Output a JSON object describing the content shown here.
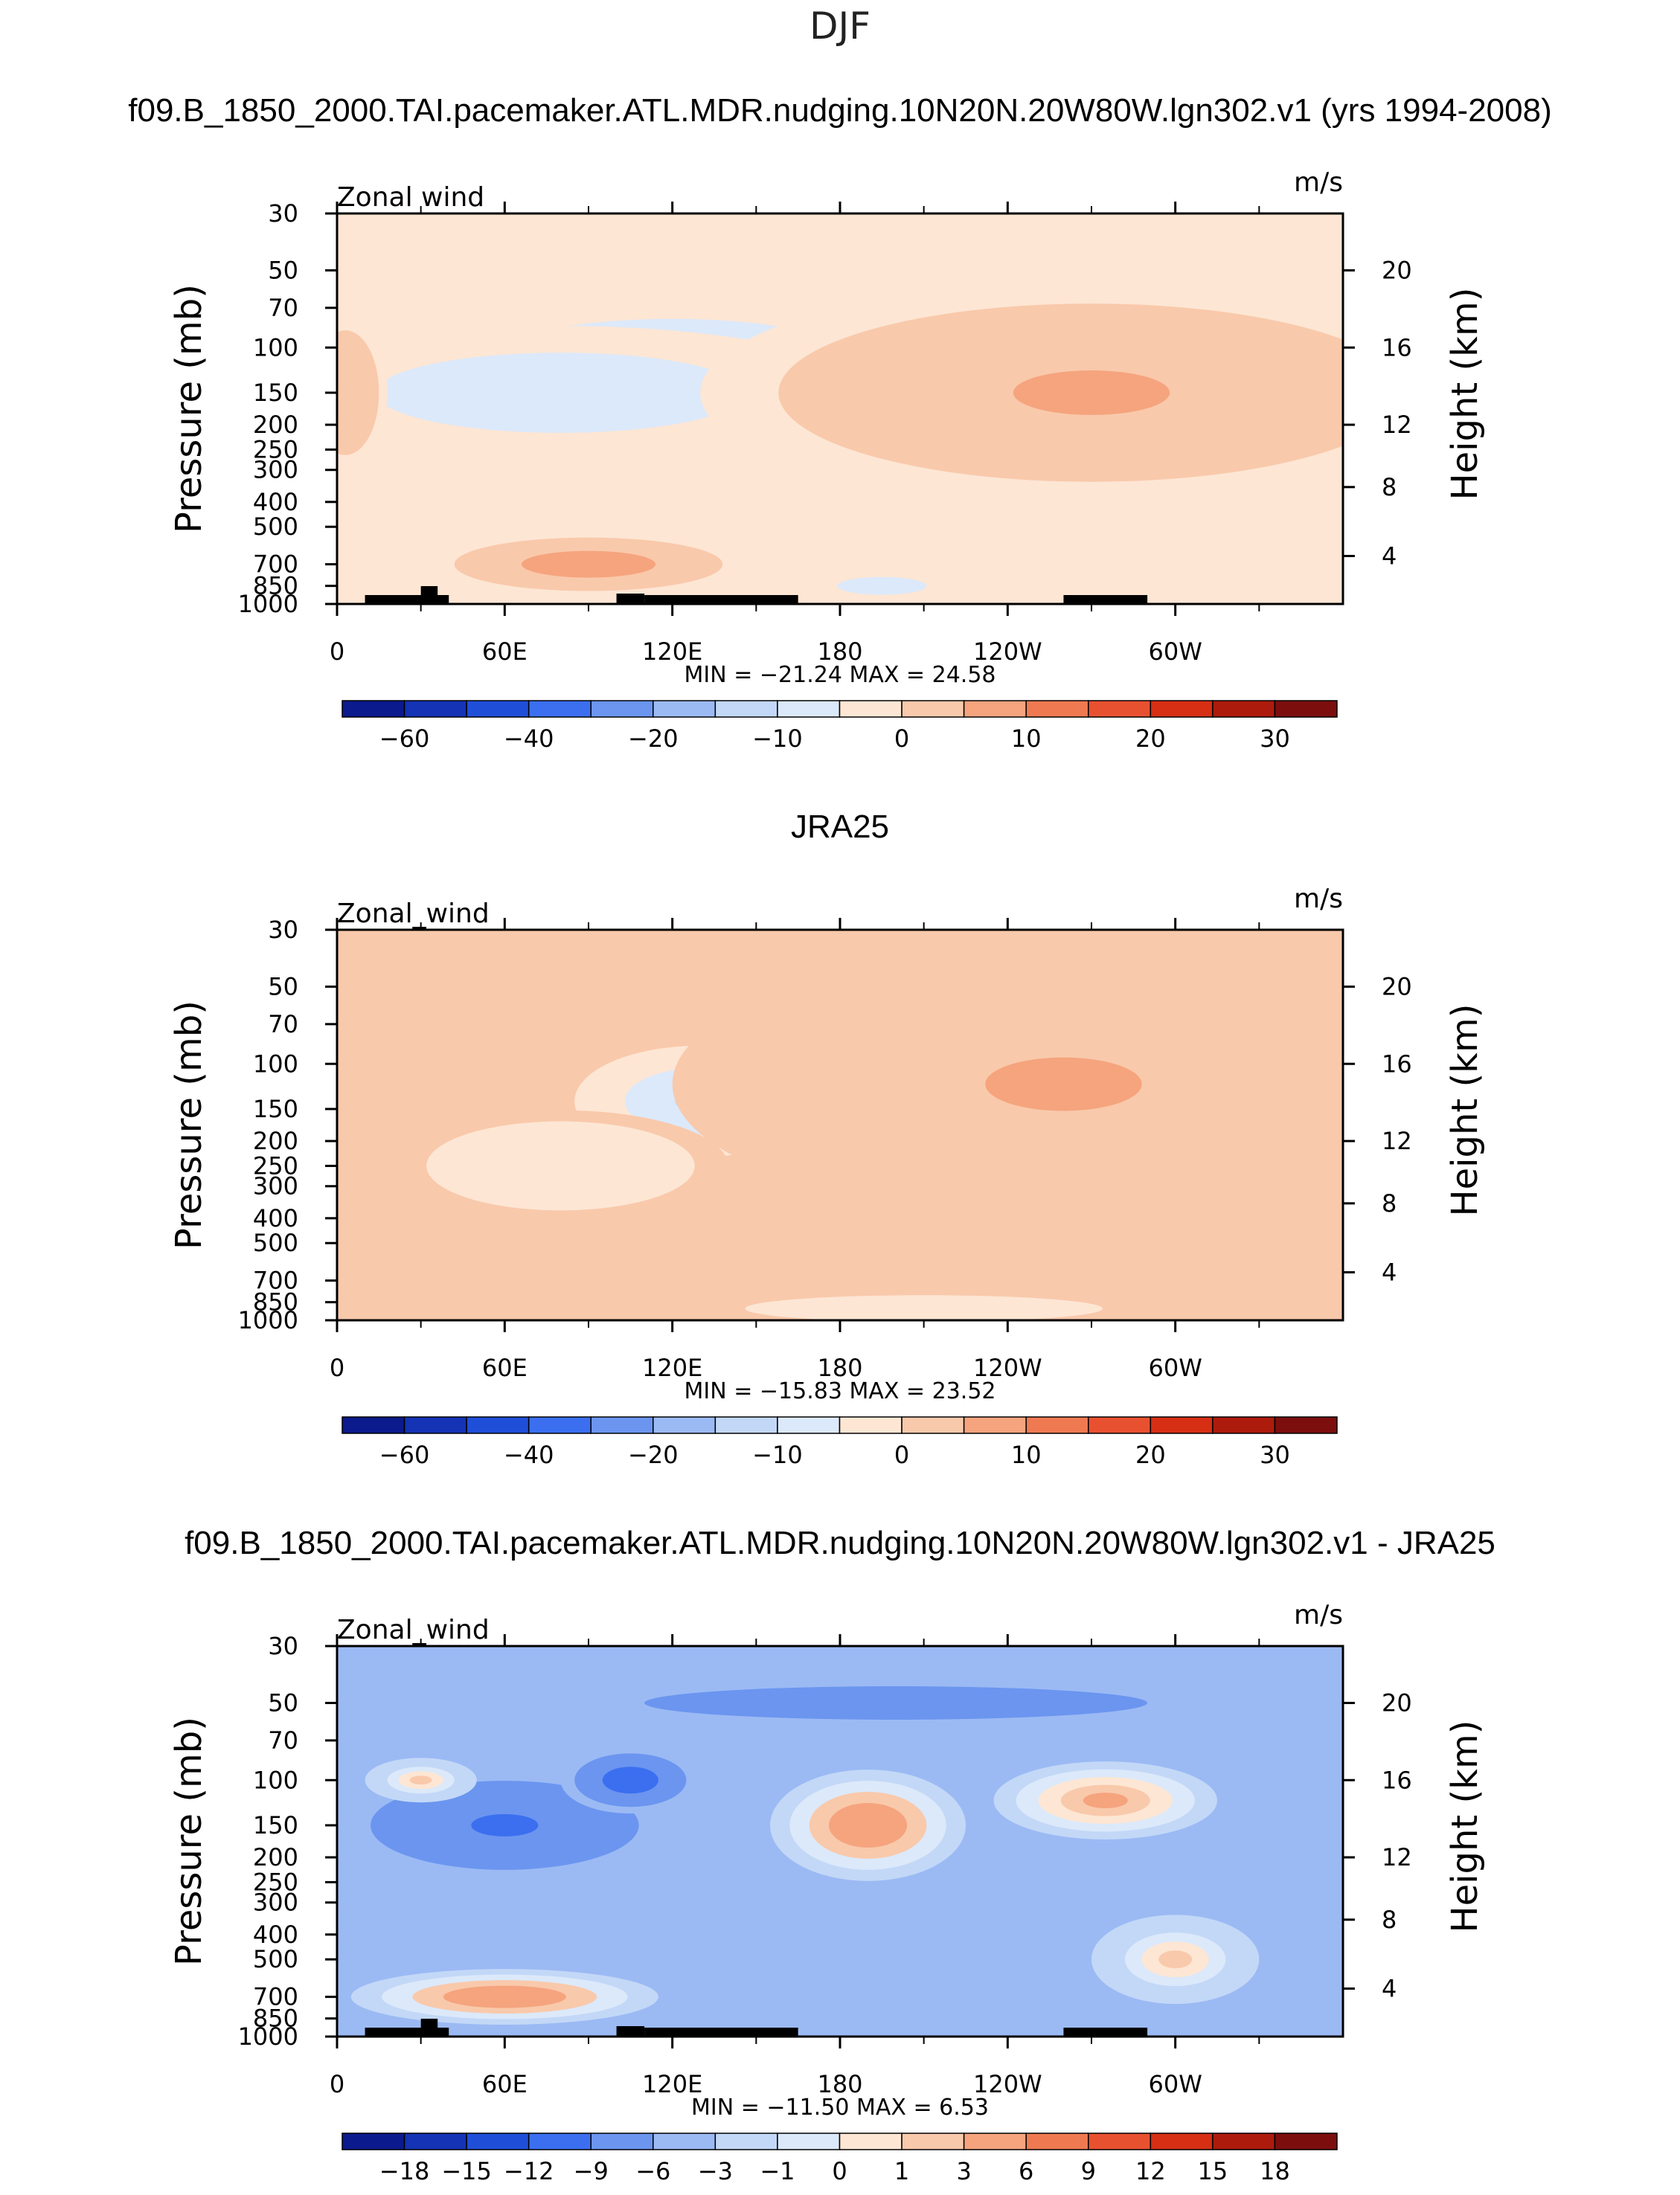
{
  "figure_title": "DJF",
  "chart_data": [
    {
      "type": "contour",
      "title": "f09.B_1850_2000.TAI.pacemaker.ATL.MDR.nudging.10N20N.20W80W.lgn302.v1 (yrs 1994-2008)",
      "variable": "Zonal wind",
      "units": "m/s",
      "ylabel": "Pressure (mb)",
      "y2label": "Height (km)",
      "pressure_ticks": [
        "30",
        "50",
        "70",
        "100",
        "150",
        "200",
        "250",
        "300",
        "400",
        "500",
        "700",
        "850",
        "1000"
      ],
      "height_ticks": [
        "20",
        "16",
        "12",
        "8",
        "4"
      ],
      "lon_ticks": [
        "0",
        "60E",
        "120E",
        "180",
        "120W",
        "60W"
      ],
      "stats_text": "MIN = −21.24   MAX =   24.58",
      "min": -21.24,
      "max": 24.58,
      "colorbar_labels": [
        "−60",
        "−40",
        "−20",
        "−10",
        "0",
        "10",
        "20",
        "30"
      ],
      "colorbar_colors": [
        "#0b1a8c",
        "#1433b5",
        "#1f4fd9",
        "#3b6ff0",
        "#6b95ef",
        "#9bbaf4",
        "#c3d8f7",
        "#dce9fa",
        "#fde6d4",
        "#f9c9ab",
        "#f5a47e",
        "#ef7a52",
        "#e85130",
        "#d62f14",
        "#ad1b0c",
        "#7d0e0e"
      ],
      "blobs": [
        {
          "lon": 120,
          "p": 120,
          "rx": 90,
          "ry": 0.55,
          "v": -15
        },
        {
          "lon": 80,
          "p": 150,
          "rx": 110,
          "ry": 0.6,
          "v": -8
        },
        {
          "lon": 235,
          "p": 150,
          "rx": 55,
          "ry": 0.75,
          "v": 22
        },
        {
          "lon": 325,
          "p": 140,
          "rx": 30,
          "ry": 0.5,
          "v": 14
        },
        {
          "lon": 270,
          "p": 150,
          "rx": 140,
          "ry": 1.0,
          "v": 6
        },
        {
          "lon": 90,
          "p": 700,
          "rx": 60,
          "ry": 0.3,
          "v": 7
        },
        {
          "lon": 195,
          "p": 850,
          "rx": 40,
          "ry": 0.2,
          "v": -6
        },
        {
          "lon": 3,
          "p": 150,
          "rx": 15,
          "ry": 0.7,
          "v": 4
        }
      ],
      "background": -2
    },
    {
      "type": "contour",
      "title": "JRA25",
      "variable": "Zonal_wind",
      "units": "m/s",
      "ylabel": "Pressure (mb)",
      "y2label": "Height (km)",
      "pressure_ticks": [
        "30",
        "50",
        "70",
        "100",
        "150",
        "200",
        "250",
        "300",
        "400",
        "500",
        "700",
        "850",
        "1000"
      ],
      "height_ticks": [
        "20",
        "16",
        "12",
        "8",
        "4"
      ],
      "lon_ticks": [
        "0",
        "60E",
        "120E",
        "180",
        "120W",
        "60W"
      ],
      "stats_text": "MIN = −15.83   MAX =   23.52",
      "min": -15.83,
      "max": 23.52,
      "colorbar_labels": [
        "−60",
        "−40",
        "−20",
        "−10",
        "0",
        "10",
        "20",
        "30"
      ],
      "colorbar_colors": [
        "#0b1a8c",
        "#1433b5",
        "#1f4fd9",
        "#3b6ff0",
        "#6b95ef",
        "#9bbaf4",
        "#c3d8f7",
        "#dce9fa",
        "#fde6d4",
        "#f9c9ab",
        "#f5a47e",
        "#ef7a52",
        "#e85130",
        "#d62f14",
        "#ad1b0c",
        "#7d0e0e"
      ],
      "blobs": [
        {
          "lon": 130,
          "p": 140,
          "rx": 45,
          "ry": 0.5,
          "v": -11
        },
        {
          "lon": 235,
          "p": 150,
          "rx": 55,
          "ry": 0.75,
          "v": 22
        },
        {
          "lon": 330,
          "p": 150,
          "rx": 30,
          "ry": 0.55,
          "v": 16
        },
        {
          "lon": 260,
          "p": 120,
          "rx": 140,
          "ry": 1.2,
          "v": 5
        },
        {
          "lon": 80,
          "p": 250,
          "rx": 60,
          "ry": 0.5,
          "v": -3
        },
        {
          "lon": 210,
          "p": 900,
          "rx": 80,
          "ry": 0.15,
          "v": -3
        },
        {
          "lon": 90,
          "p": 750,
          "rx": 40,
          "ry": 0.2,
          "v": 4
        }
      ],
      "background": 1
    },
    {
      "type": "contour",
      "title": "f09.B_1850_2000.TAI.pacemaker.ATL.MDR.nudging.10N20N.20W80W.lgn302.v1 - JRA25",
      "variable": "Zonal_wind",
      "units": "m/s",
      "ylabel": "Pressure (mb)",
      "y2label": "Height (km)",
      "pressure_ticks": [
        "30",
        "50",
        "70",
        "100",
        "150",
        "200",
        "250",
        "300",
        "400",
        "500",
        "700",
        "850",
        "1000"
      ],
      "height_ticks": [
        "20",
        "16",
        "12",
        "8",
        "4"
      ],
      "lon_ticks": [
        "0",
        "60E",
        "120E",
        "180",
        "120W",
        "60W"
      ],
      "stats_text": "MIN = −11.50   MAX =    6.53",
      "min": -11.5,
      "max": 6.53,
      "colorbar_labels": [
        "−18",
        "−15",
        "−12",
        "−9",
        "−6",
        "−3",
        "−1",
        "0",
        "1",
        "3",
        "6",
        "9",
        "12",
        "15",
        "18"
      ],
      "colorbar_colors": [
        "#0b1a8c",
        "#1433b5",
        "#1f4fd9",
        "#3b6ff0",
        "#6b95ef",
        "#9bbaf4",
        "#c3d8f7",
        "#dce9fa",
        "#fde6d4",
        "#f9c9ab",
        "#f5a47e",
        "#ef7a52",
        "#e85130",
        "#d62f14",
        "#ad1b0c",
        "#7d0e0e"
      ],
      "blobs": [
        {
          "lon": 60,
          "p": 150,
          "rx": 60,
          "ry": 0.5,
          "v": -10
        },
        {
          "lon": 105,
          "p": 100,
          "rx": 25,
          "ry": 0.3,
          "v": -11
        },
        {
          "lon": 200,
          "p": 50,
          "rx": 150,
          "ry": 0.25,
          "v": -8
        },
        {
          "lon": 190,
          "p": 150,
          "rx": 35,
          "ry": 0.5,
          "v": 5
        },
        {
          "lon": 275,
          "p": 120,
          "rx": 40,
          "ry": 0.35,
          "v": 4
        },
        {
          "lon": 245,
          "p": 300,
          "rx": 30,
          "ry": 0.35,
          "v": -6
        },
        {
          "lon": 60,
          "p": 700,
          "rx": 55,
          "ry": 0.25,
          "v": 5
        },
        {
          "lon": 300,
          "p": 500,
          "rx": 30,
          "ry": 0.4,
          "v": 2
        },
        {
          "lon": 30,
          "p": 100,
          "rx": 20,
          "ry": 0.2,
          "v": 2
        }
      ],
      "background": -4
    }
  ]
}
